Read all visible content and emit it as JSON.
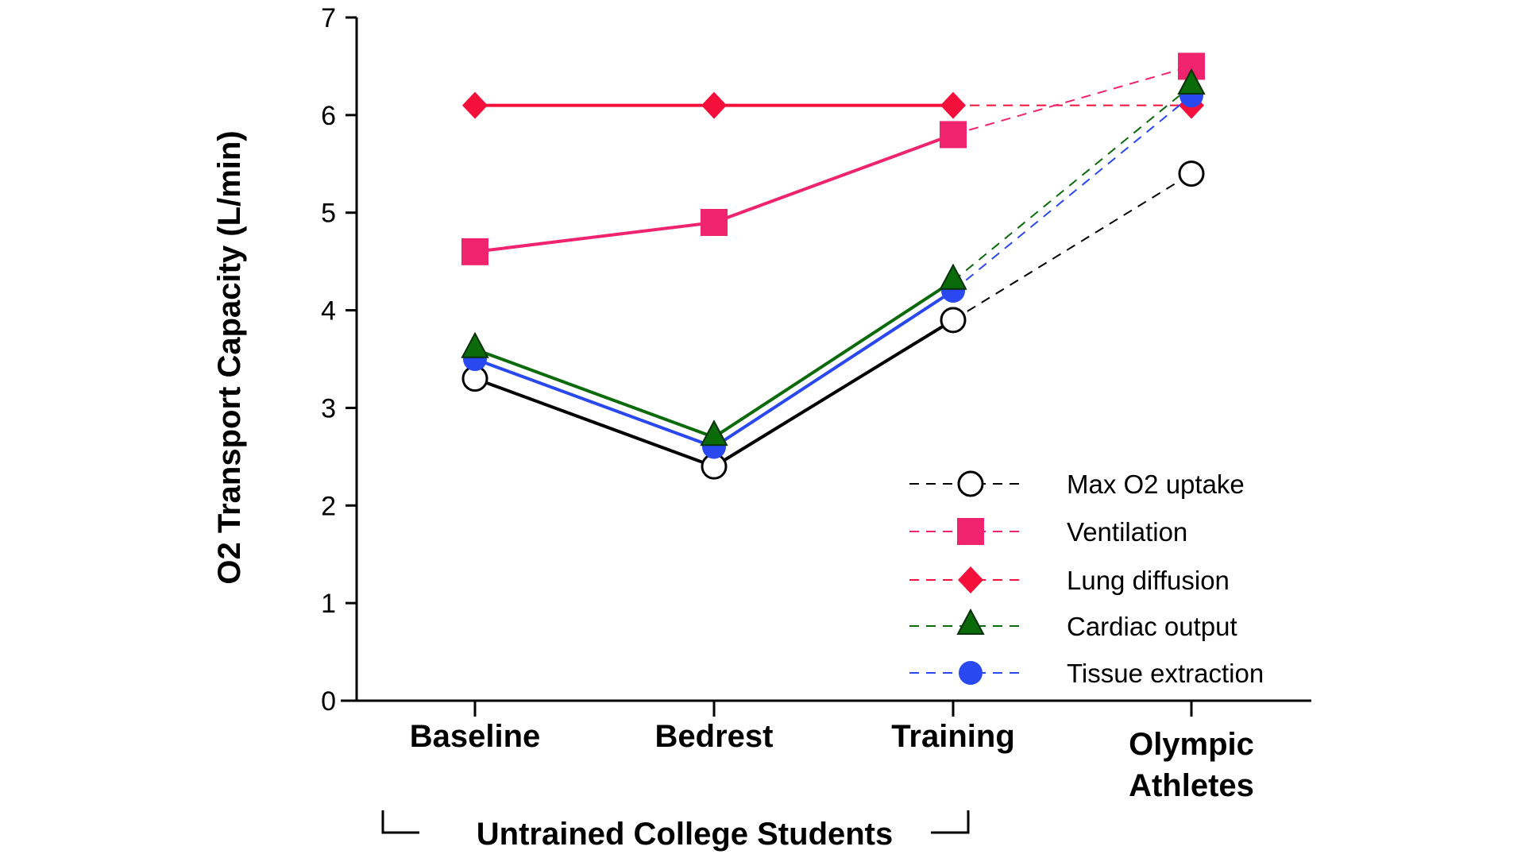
{
  "chart_data": {
    "type": "line",
    "title": "",
    "ylabel": "O2 Transport Capacity (L/min)",
    "xlabel": "",
    "ylim": [
      0,
      7
    ],
    "yticks": [
      0,
      1,
      2,
      3,
      4,
      5,
      6,
      7
    ],
    "categories": [
      "Baseline",
      "Bedrest",
      "Training",
      "Olympic Athletes"
    ],
    "group_label": "Untrained College Students",
    "legend_position": "bottom-right",
    "note": "Solid lines connect the first three groups; dashed lines connect Training to Olympic Athletes",
    "series": [
      {
        "name": "Max O2 uptake",
        "marker": "open-circle",
        "color": "#000000",
        "values": [
          3.3,
          2.4,
          3.9,
          5.4
        ]
      },
      {
        "name": "Ventilation",
        "marker": "square",
        "color": "#f0236e",
        "values": [
          4.6,
          4.9,
          5.8,
          6.5
        ]
      },
      {
        "name": "Lung diffusion",
        "marker": "diamond",
        "color": "#f5103c",
        "values": [
          6.1,
          6.1,
          6.1,
          6.1
        ]
      },
      {
        "name": "Cardiac output",
        "marker": "triangle",
        "color": "#0b6b0b",
        "values": [
          3.6,
          2.7,
          4.3,
          6.3
        ]
      },
      {
        "name": "Tissue extraction",
        "marker": "circle",
        "color": "#2a48f0",
        "values": [
          3.5,
          2.6,
          4.2,
          6.2
        ]
      }
    ]
  }
}
